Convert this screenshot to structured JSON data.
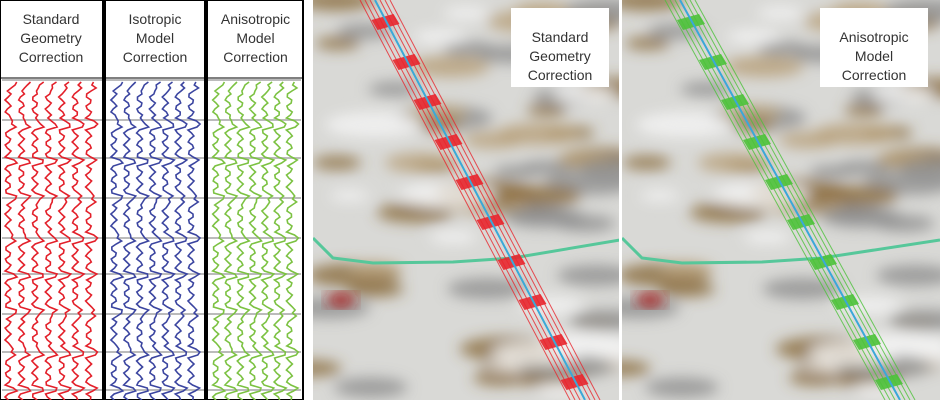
{
  "left_panel": {
    "columns": [
      {
        "lines": [
          "Standard",
          "Geometry",
          "Correction"
        ]
      },
      {
        "lines": [
          "Isotropic",
          "Model",
          "Correction"
        ]
      },
      {
        "lines": [
          "Anisotropic",
          "Model",
          "Correction"
        ]
      }
    ]
  },
  "right_panels": [
    {
      "lines": [
        "Standard",
        "Geometry",
        "Correction"
      ]
    },
    {
      "lines": [
        "Anisotropic",
        "Model",
        "Correction"
      ]
    }
  ]
}
